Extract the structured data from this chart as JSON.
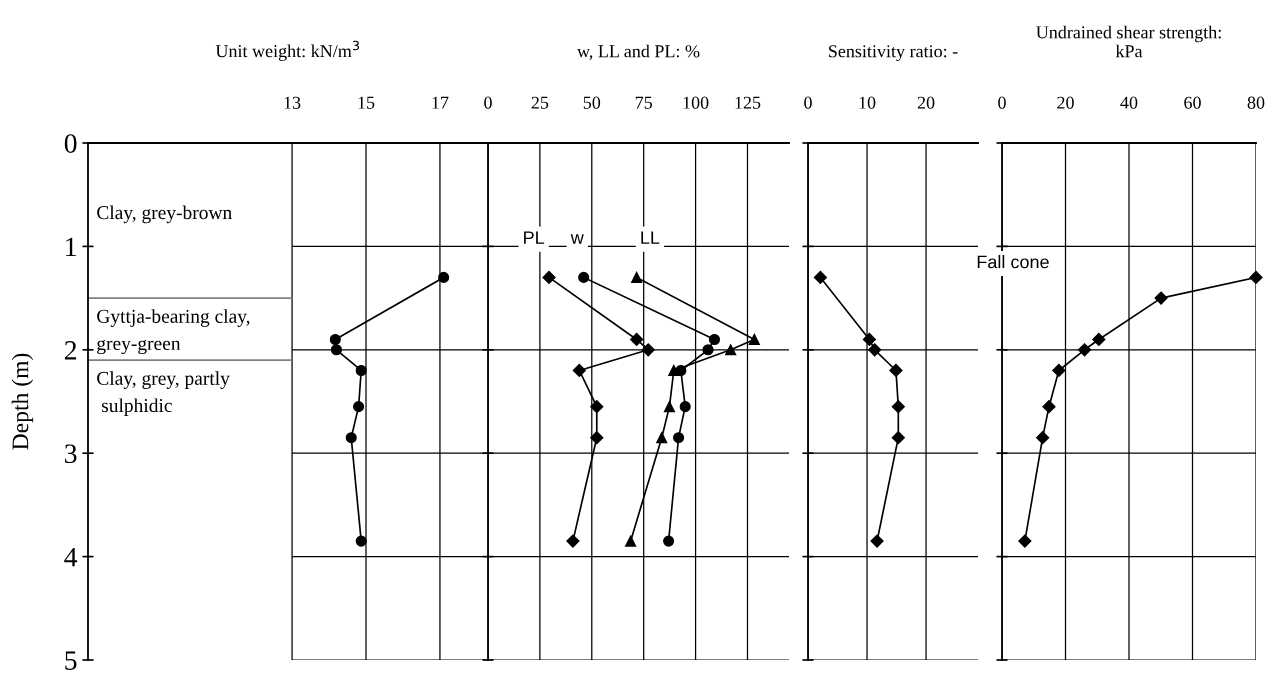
{
  "chart_data": [
    {
      "type": "line",
      "xlabel": "Unit weight: kN/m$^{3}$",
      "ylabel": "Depth (m)",
      "xlim": [
        7.48,
        18.3
      ],
      "xticks": [
        13,
        15,
        17
      ],
      "ylim": [
        5,
        0
      ],
      "yticks": [
        0,
        1,
        2,
        3,
        4,
        5
      ],
      "grid": true,
      "annotations": [
        "Clay, grey-brown"
      ],
      "ref_lines": [
        {
          "axis": "y",
          "value": 1.5,
          "label": "Gyttja-bearing clay,\ngrey-green",
          "color": "#808080"
        },
        {
          "axis": "y",
          "value": 2.1,
          "label": "Clay, grey, partly\n sulphidic",
          "color": "#808080"
        }
      ],
      "series": [
        {
          "color": "#000000",
          "marker": "circle",
          "x": [
            17.1,
            14.17,
            14.2,
            14.87,
            14.8,
            14.6,
            14.87
          ],
          "values": [
            1.3,
            1.9,
            2.0,
            2.2,
            2.55,
            2.85,
            3.85
          ]
        }
      ]
    },
    {
      "type": "line",
      "xlabel": "w, LL and PL: %",
      "xlim": [
        0,
        145
      ],
      "xticks": [
        0,
        25,
        50,
        75,
        100,
        125
      ],
      "ylim": [
        5,
        0
      ],
      "yticks": [
        0,
        1,
        2,
        3,
        4,
        5
      ],
      "tick_labels": "x",
      "grid": true,
      "series": [
        {
          "color": "#000000",
          "marker": "diamond",
          "x": [
            29.4,
            71.6,
            77.2,
            44,
            52.4,
            52.4,
            40.9
          ],
          "values": [
            1.3,
            1.9,
            2.0,
            2.2,
            2.55,
            2.85,
            3.85
          ]
        },
        {
          "color": "#000000",
          "marker": "circle",
          "x": [
            46.1,
            109.1,
            106,
            92.9,
            95,
            91.8,
            87
          ],
          "values": [
            1.3,
            1.9,
            2.0,
            2.2,
            2.55,
            2.85,
            3.85
          ]
        },
        {
          "color": "#000000",
          "marker": "triangle",
          "x": [
            71.6,
            128.3,
            116.9,
            89.5,
            87.4,
            83.7,
            68.7
          ],
          "values": [
            1.3,
            1.9,
            2.0,
            2.2,
            2.55,
            2.85,
            3.85
          ]
        }
      ],
      "annotations": [
        {
          "text": "PL",
          "x": 22,
          "y": 0.93
        },
        {
          "text": "w",
          "x": 43,
          "y": 0.93
        },
        {
          "text": "LL",
          "x": 78,
          "y": 0.93
        }
      ]
    },
    {
      "type": "line",
      "xlabel": "Sensitivity ratio: -",
      "xlim": [
        0,
        28.8
      ],
      "xticks": [
        0,
        10,
        20
      ],
      "ylim": [
        5,
        0
      ],
      "yticks": [
        0,
        1,
        2,
        3,
        4,
        5
      ],
      "tick_labels": "x",
      "grid": true,
      "series": [
        {
          "color": "#000000",
          "marker": "diamond",
          "x": [
            2.1,
            10.4,
            11.3,
            14.9,
            15.3,
            15.3,
            11.7
          ],
          "values": [
            1.3,
            1.9,
            2.0,
            2.2,
            2.55,
            2.85,
            3.85
          ]
        }
      ]
    },
    {
      "type": "line",
      "xlabel": "Undrained shear strength:\nkPa",
      "xlim": [
        0,
        80
      ],
      "xticks": [
        0,
        20,
        40,
        60,
        80
      ],
      "ylim": [
        5,
        0
      ],
      "yticks": [
        0,
        1,
        2,
        3,
        4,
        5
      ],
      "tick_labels": "x",
      "grid": true,
      "series": [
        {
          "color": "#000000",
          "marker": "diamond",
          "x": [
            80,
            50.1,
            30.5,
            26,
            17.9,
            14.8,
            12.8,
            7.2
          ],
          "values": [
            1.3,
            1.5,
            1.9,
            2.0,
            2.2,
            2.55,
            2.85,
            3.85
          ]
        }
      ],
      "annotations": [
        "Fall cone"
      ]
    }
  ]
}
